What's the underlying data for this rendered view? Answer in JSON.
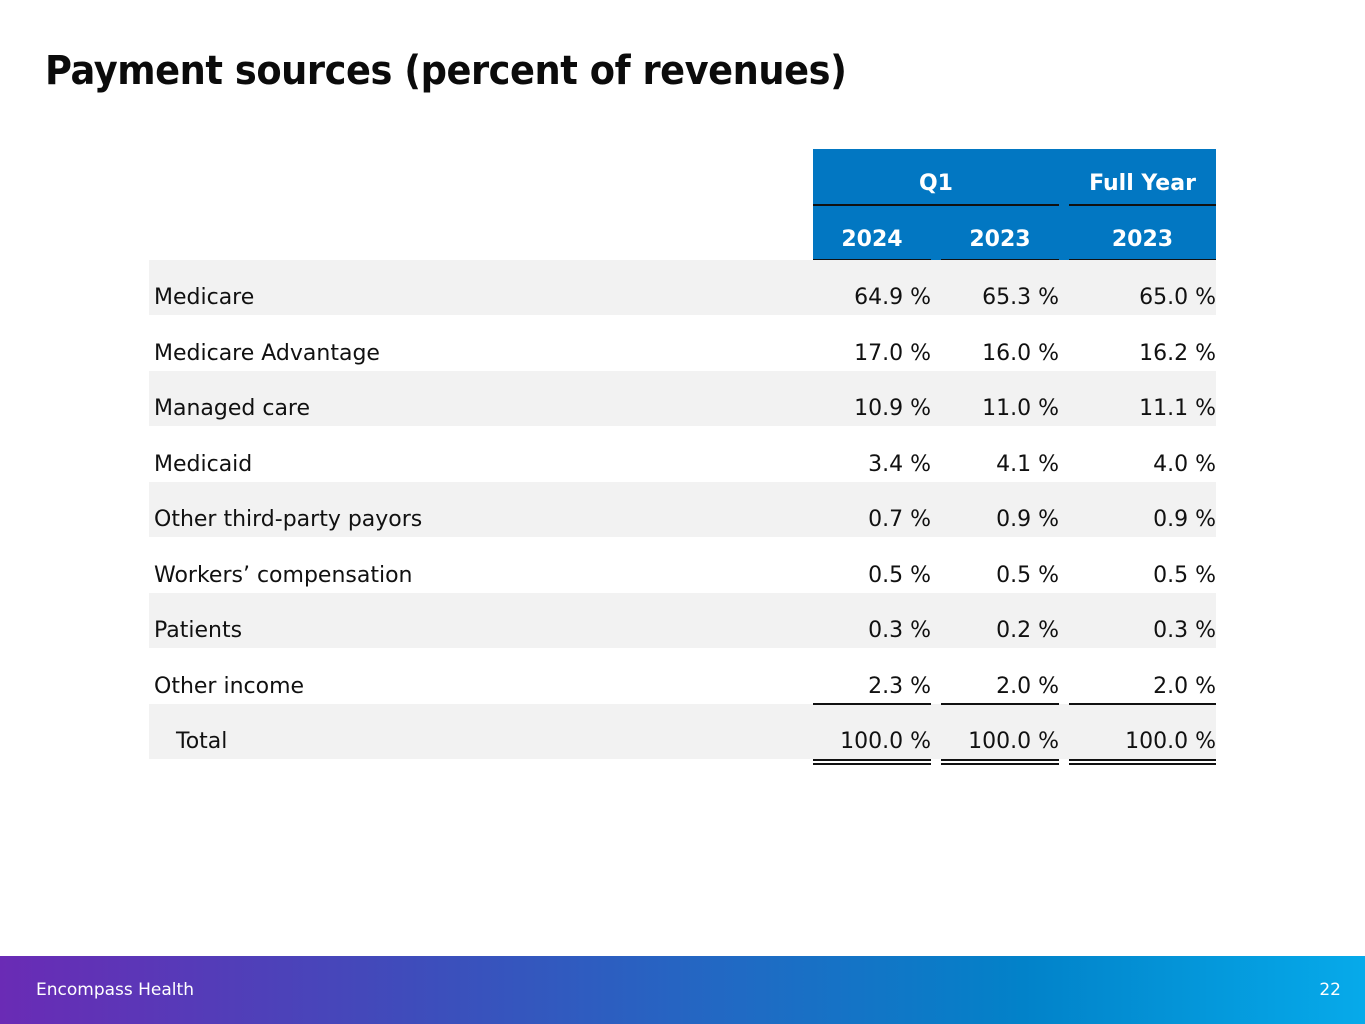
{
  "slide": {
    "title": "Payment sources (percent of revenues)",
    "page_number": "22",
    "brand": "Encompass Health",
    "colors": {
      "header_bg": "#0277c2",
      "row_shade": "#f2f2f2",
      "footer_start": "#6a2bb5",
      "footer_end": "#06aaea"
    }
  },
  "table": {
    "group_headers": [
      "Q1",
      "Full Year"
    ],
    "column_headers": [
      "2024",
      "2023",
      "2023"
    ],
    "rows": [
      {
        "label": "Medicare",
        "values": [
          "64.9 %",
          "65.3 %",
          "65.0 %"
        ]
      },
      {
        "label": "Medicare Advantage",
        "values": [
          "17.0 %",
          "16.0 %",
          "16.2 %"
        ]
      },
      {
        "label": "Managed care",
        "values": [
          "10.9 %",
          "11.0 %",
          "11.1 %"
        ]
      },
      {
        "label": "Medicaid",
        "values": [
          "3.4 %",
          "4.1 %",
          "4.0 %"
        ]
      },
      {
        "label": "Other third-party payors",
        "values": [
          "0.7 %",
          "0.9 %",
          "0.9 %"
        ]
      },
      {
        "label": "Workers’ compensation",
        "values": [
          "0.5 %",
          "0.5 %",
          "0.5 %"
        ]
      },
      {
        "label": "Patients",
        "values": [
          "0.3 %",
          "0.2 %",
          "0.3 %"
        ]
      },
      {
        "label": "Other income",
        "values": [
          "2.3 %",
          "2.0 %",
          "2.0 %"
        ]
      },
      {
        "label": "Total",
        "values": [
          "100.0 %",
          "100.0 %",
          "100.0 %"
        ]
      }
    ]
  }
}
